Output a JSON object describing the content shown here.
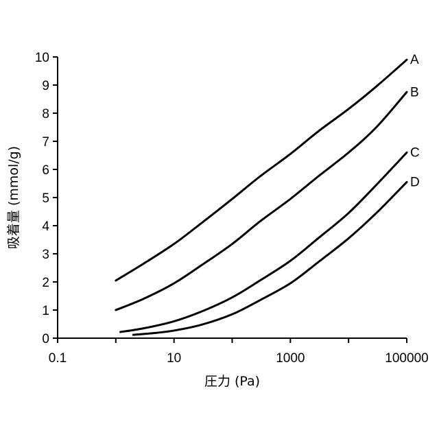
{
  "chart_data": {
    "type": "line",
    "x_scale": "log",
    "xlabel": "圧力 (Pa)",
    "ylabel": "吸着量 (mmol/g)",
    "xlim": [
      0.1,
      100000
    ],
    "ylim": [
      0,
      10
    ],
    "x_ticks": [
      "0.1",
      "10",
      "1000",
      "100000"
    ],
    "x_tick_values": [
      0.1,
      10,
      1000,
      100000
    ],
    "y_ticks": [
      "0",
      "1",
      "2",
      "3",
      "4",
      "5",
      "6",
      "7",
      "8",
      "9",
      "10"
    ],
    "y_tick_values": [
      0,
      1,
      2,
      3,
      4,
      5,
      6,
      7,
      8,
      9,
      10
    ],
    "grid": false,
    "line_color": "#000000",
    "series": [
      {
        "name": "A",
        "x": [
          1,
          3,
          10,
          30,
          100,
          300,
          1000,
          3000,
          10000,
          30000,
          100000
        ],
        "y": [
          2.05,
          2.65,
          3.35,
          4.1,
          4.95,
          5.75,
          6.55,
          7.35,
          8.15,
          8.95,
          9.9
        ]
      },
      {
        "name": "B",
        "x": [
          1,
          3,
          10,
          30,
          100,
          300,
          1000,
          3000,
          10000,
          30000,
          100000
        ],
        "y": [
          1.0,
          1.4,
          1.95,
          2.6,
          3.35,
          4.15,
          4.95,
          5.75,
          6.6,
          7.5,
          8.75
        ]
      },
      {
        "name": "C",
        "x": [
          1.2,
          3,
          10,
          30,
          100,
          300,
          1000,
          3000,
          10000,
          30000,
          100000
        ],
        "y": [
          0.22,
          0.35,
          0.6,
          0.95,
          1.45,
          2.05,
          2.75,
          3.55,
          4.45,
          5.45,
          6.6
        ]
      },
      {
        "name": "D",
        "x": [
          2,
          4,
          10,
          30,
          100,
          300,
          1000,
          3000,
          10000,
          30000,
          100000
        ],
        "y": [
          0.12,
          0.17,
          0.27,
          0.48,
          0.85,
          1.35,
          1.95,
          2.7,
          3.55,
          4.45,
          5.55
        ]
      }
    ]
  }
}
